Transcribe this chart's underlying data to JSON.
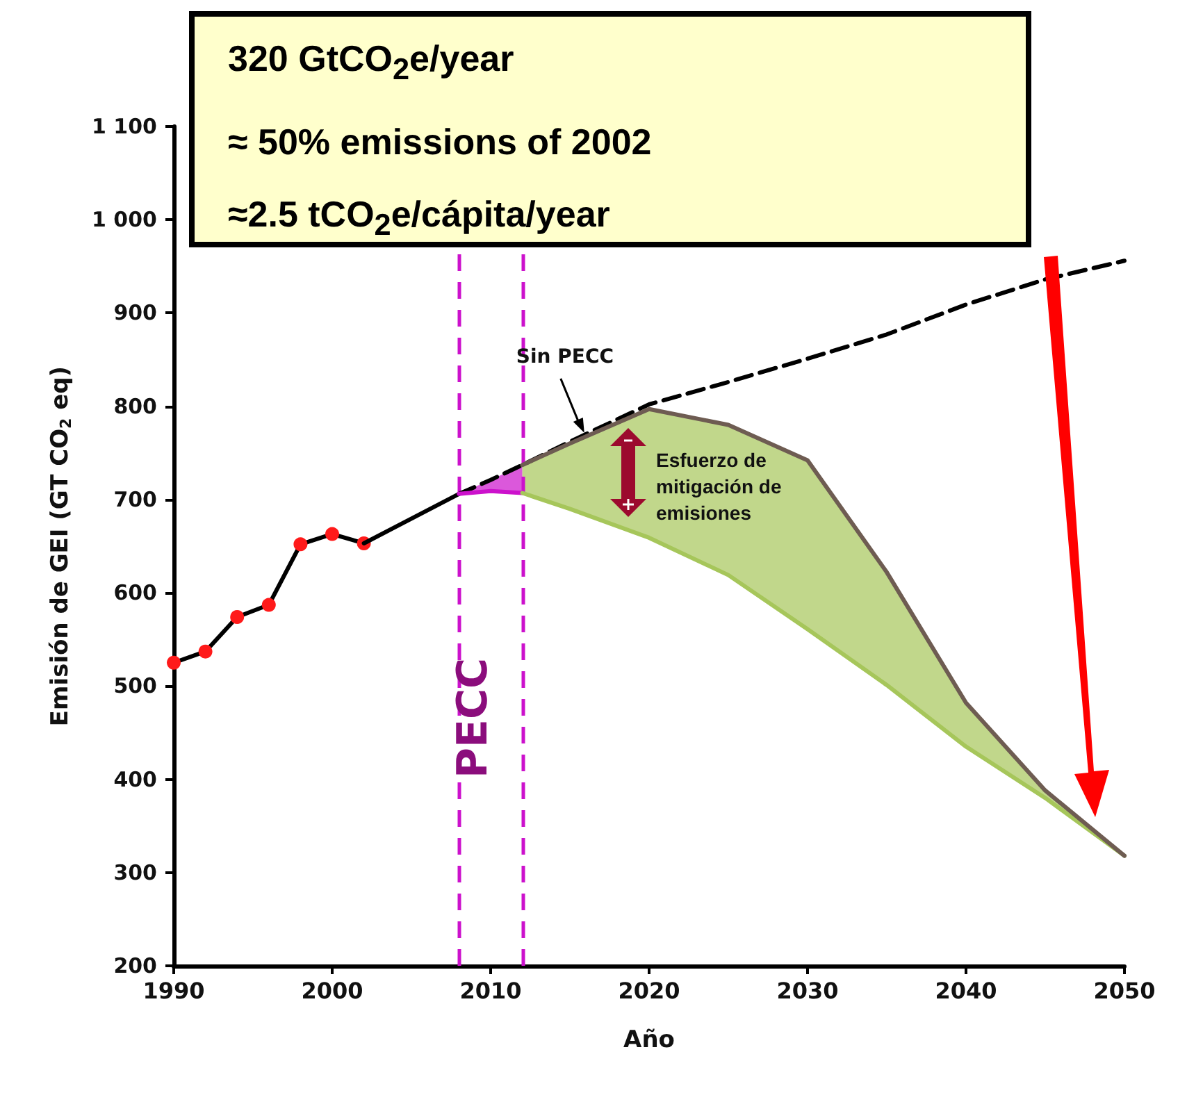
{
  "chart_data": {
    "type": "line",
    "xlabel": "Año",
    "ylabel": "Emisión de GEI (GT CO$_{2}$ eq)",
    "xlim": [
      1990,
      2050
    ],
    "xticks": [
      1990,
      2000,
      2010,
      2020,
      2030,
      2040,
      2050
    ],
    "ylim": [
      200,
      1100
    ],
    "yticks": [
      200,
      300,
      400,
      500,
      600,
      700,
      800,
      900,
      {
        "value": 1000,
        "label": "1 000"
      },
      {
        "value": 1100,
        "label": "1 100"
      }
    ],
    "grid": false,
    "series": [
      {
        "color": "#000000",
        "colors": [
          "#ff1a1a",
          "#ff1a1a",
          "#ff1a1a",
          "#ff1a1a",
          "#ff1a1a",
          "#ff1a1a",
          "#ff1a1a"
        ],
        "marker": "circle",
        "line_style": "solid",
        "x": [
          1990,
          1992,
          1994,
          1996,
          1998,
          2000,
          2002
        ],
        "values": [
          525,
          537,
          574,
          587,
          652,
          663,
          653
        ]
      },
      {
        "color": "#000000",
        "marker": "none",
        "line_style": "solid",
        "x": [
          2002,
          2008
        ],
        "values": [
          653,
          706
        ]
      },
      {
        "color": "#000000",
        "marker": "none",
        "line_style": "dashed",
        "x": [
          2008,
          2010,
          2012,
          2015,
          2020,
          2025,
          2030,
          2035,
          2040,
          2045,
          2050
        ],
        "values": [
          706,
          721,
          737,
          762,
          802,
          826,
          851,
          877,
          909,
          936,
          956
        ]
      },
      {
        "color": "#cc11cc",
        "marker": "none",
        "line_style": "solid",
        "x": [
          2008,
          2010,
          2012
        ],
        "values": [
          706,
          709,
          707
        ],
        "lower": [
          706,
          709,
          707
        ],
        "upper": [
          706,
          721,
          737
        ]
      },
      {
        "color": "#a6c65a",
        "marker": "none",
        "line_style": "solid",
        "x": [
          2012,
          2015,
          2020,
          2025,
          2030,
          2035,
          2040,
          2045,
          2050
        ],
        "values": [
          707,
          690,
          659,
          619,
          561,
          501,
          435,
          380,
          318
        ],
        "lower": [
          707,
          690,
          659,
          619,
          561,
          501,
          435,
          380,
          318
        ],
        "upper": [
          737,
          760,
          797,
          780,
          742,
          622,
          482,
          388,
          318
        ]
      },
      {
        "color": "#6e5c52",
        "marker": "none",
        "line_style": "solid",
        "x": [
          2012,
          2015,
          2020,
          2025,
          2030,
          2035,
          2040,
          2045,
          2050
        ],
        "values": [
          737,
          760,
          797,
          780,
          742,
          622,
          482,
          388,
          318
        ]
      }
    ],
    "ref_lines": [
      {
        "axis": "x",
        "value": 2008,
        "label": null,
        "color": "#cc11cc",
        "line_style": "dashed"
      },
      {
        "axis": "x",
        "value": 2012,
        "label": null,
        "color": "#cc11cc",
        "line_style": "dashed"
      }
    ],
    "annotations": [
      "320 GtCO$_{2}$e/year",
      "≈ 50% emissions of 2002",
      "≈2.5 tCO$_{2}$e/cápita/year",
      "Esfuerzo de mitigación de emisiones",
      "PECC",
      {
        "text": "Sin PECC",
        "x": 2016,
        "y": 770
      }
    ]
  }
}
